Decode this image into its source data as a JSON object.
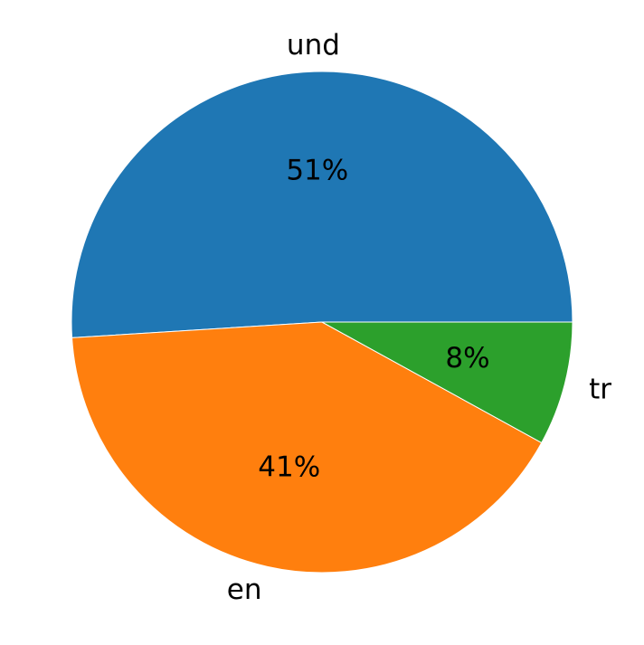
{
  "chart_data": {
    "type": "pie",
    "categories": [
      "und",
      "en",
      "tr"
    ],
    "values": [
      51,
      41,
      8
    ],
    "value_labels": [
      "51%",
      "41%",
      "8%"
    ],
    "colors": [
      "#1f77b4",
      "#ff7f0e",
      "#2ca02c"
    ]
  }
}
